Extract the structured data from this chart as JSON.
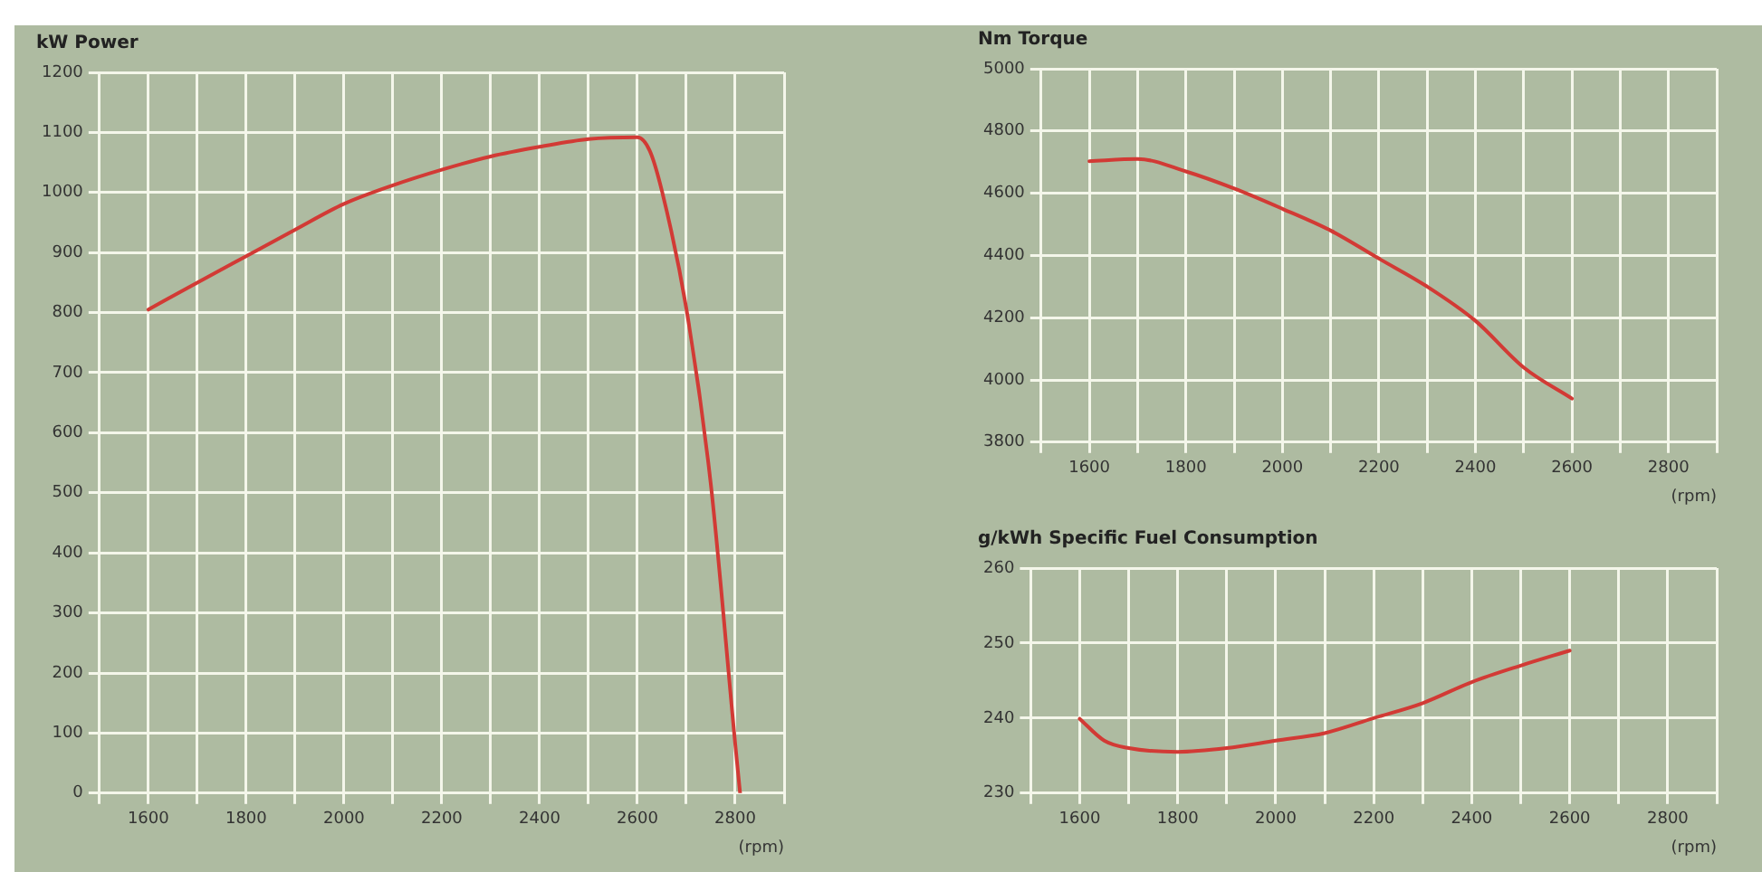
{
  "chart_data": [
    {
      "type": "line",
      "title": "kW Power",
      "xlabel": "(rpm)",
      "grid": true,
      "legend": false,
      "marker": "none",
      "xlim": [
        1500,
        2900
      ],
      "xticks": [
        {
          "value": 1500,
          "label": null
        },
        1600,
        {
          "value": 1700,
          "label": null
        },
        1800,
        {
          "value": 1900,
          "label": null
        },
        2000,
        {
          "value": 2100,
          "label": null
        },
        2200,
        {
          "value": 2300,
          "label": null
        },
        2400,
        {
          "value": 2500,
          "label": null
        },
        2600,
        {
          "value": 2700,
          "label": null
        },
        2800,
        {
          "value": 2900,
          "label": null
        }
      ],
      "ylim": [
        0,
        1200
      ],
      "yticks": [
        0,
        100,
        200,
        300,
        400,
        500,
        600,
        700,
        800,
        900,
        1000,
        1100,
        1200
      ],
      "series": [
        {
          "color": "#d23a35",
          "x": [
            1600,
            1700,
            1800,
            1900,
            2000,
            2100,
            2200,
            2300,
            2400,
            2500,
            2600,
            2625,
            2650,
            2700,
            2750,
            2800,
            2810
          ],
          "values": [
            805,
            850,
            894,
            938,
            981,
            1012,
            1038,
            1060,
            1076,
            1089,
            1092,
            1070,
            1003,
            807,
            515,
            82,
            0
          ]
        }
      ]
    },
    {
      "type": "line",
      "title": "Nm Torque",
      "xlabel": "(rpm)",
      "grid": true,
      "legend": false,
      "marker": "none",
      "xlim": [
        1500,
        2900
      ],
      "xticks": [
        {
          "value": 1500,
          "label": null
        },
        1600,
        {
          "value": 1700,
          "label": null
        },
        1800,
        {
          "value": 1900,
          "label": null
        },
        2000,
        {
          "value": 2100,
          "label": null
        },
        2200,
        {
          "value": 2300,
          "label": null
        },
        2400,
        {
          "value": 2500,
          "label": null
        },
        2600,
        {
          "value": 2700,
          "label": null
        },
        2800,
        {
          "value": 2900,
          "label": null
        }
      ],
      "ylim": [
        3800,
        5000
      ],
      "yticks": [
        3800,
        4000,
        4200,
        4400,
        4600,
        4800,
        5000
      ],
      "series": [
        {
          "color": "#d23a35",
          "x": [
            1600,
            1700,
            1800,
            1900,
            2000,
            2100,
            2200,
            2300,
            2400,
            2500,
            2600
          ],
          "values": [
            4703,
            4710,
            4670,
            4615,
            4550,
            4480,
            4390,
            4300,
            4190,
            4040,
            3940
          ]
        }
      ]
    },
    {
      "type": "line",
      "title": "g/kWh Specific Fuel Consumption",
      "xlabel": "(rpm)",
      "grid": true,
      "legend": false,
      "marker": "none",
      "xlim": [
        1500,
        2900
      ],
      "xticks": [
        {
          "value": 1500,
          "label": null
        },
        1600,
        {
          "value": 1700,
          "label": null
        },
        1800,
        {
          "value": 1900,
          "label": null
        },
        2000,
        {
          "value": 2100,
          "label": null
        },
        2200,
        {
          "value": 2300,
          "label": null
        },
        2400,
        {
          "value": 2500,
          "label": null
        },
        2600,
        {
          "value": 2700,
          "label": null
        },
        2800,
        {
          "value": 2900,
          "label": null
        }
      ],
      "ylim": [
        230,
        260
      ],
      "yticks": [
        230,
        240,
        250,
        260
      ],
      "series": [
        {
          "color": "#d23a35",
          "x": [
            1600,
            1650,
            1700,
            1800,
            1900,
            2000,
            2100,
            2200,
            2300,
            2400,
            2500,
            2600
          ],
          "values": [
            239.9,
            237,
            236,
            235.5,
            236,
            237,
            238,
            240,
            242,
            244.8,
            247,
            249
          ]
        }
      ]
    }
  ]
}
